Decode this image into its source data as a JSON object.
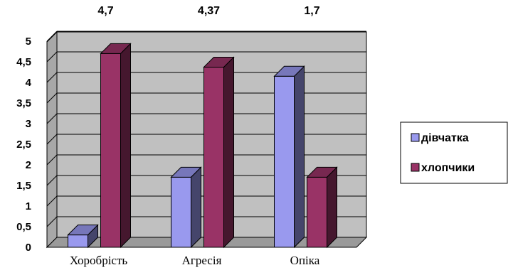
{
  "chart_data": {
    "type": "bar",
    "categories": [
      "Хоробрість",
      "Агресія",
      "Опіка"
    ],
    "series": [
      {
        "name": "дівчатка",
        "values": [
          0.3,
          1.7,
          4.15
        ]
      },
      {
        "name": "хлопчики",
        "values": [
          4.7,
          4.37,
          1.7
        ]
      }
    ],
    "top_labels": [
      "4,7",
      "4,37",
      "1,7"
    ],
    "yticks": [
      "0",
      "0,5",
      "1",
      "1,5",
      "2",
      "2,5",
      "3",
      "3,5",
      "4",
      "4,5",
      "5"
    ],
    "ylim": [
      0,
      5
    ],
    "grid": true,
    "legend_position": "right",
    "colors": {
      "series": [
        "#9999ee",
        "#993366"
      ],
      "plot_bg": "#c0c0c0"
    }
  }
}
